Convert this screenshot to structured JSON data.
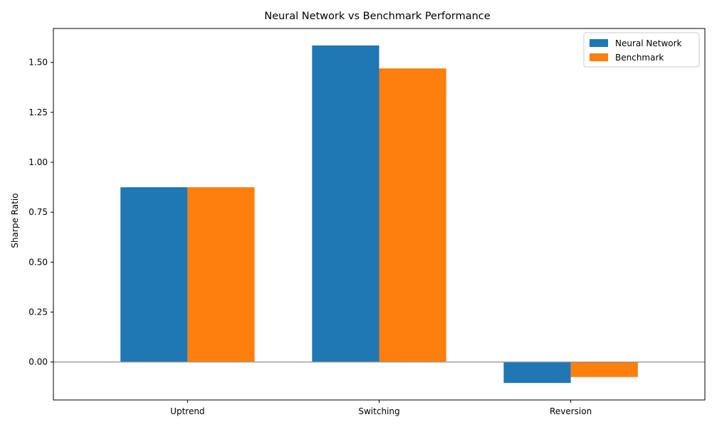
{
  "chart_data": {
    "type": "bar",
    "title": "Neural Network vs Benchmark Performance",
    "xlabel": "",
    "ylabel": "Sharpe Ratio",
    "categories": [
      "Uptrend",
      "Switching",
      "Reversion"
    ],
    "series": [
      {
        "name": "Neural Network",
        "values": [
          0.875,
          1.585,
          -0.105
        ],
        "color": "#1f77b4"
      },
      {
        "name": "Benchmark",
        "values": [
          0.875,
          1.47,
          -0.075
        ],
        "color": "#ff7f0e"
      }
    ],
    "ylim": [
      -0.19,
      1.67
    ],
    "yticks": [
      0.0,
      0.25,
      0.5,
      0.75,
      1.0,
      1.25,
      1.5
    ],
    "ytick_labels": [
      "0.00",
      "0.25",
      "0.50",
      "0.75",
      "1.00",
      "1.25",
      "1.50"
    ],
    "zero_line": true,
    "grid": false,
    "legend_position": "top-right"
  }
}
